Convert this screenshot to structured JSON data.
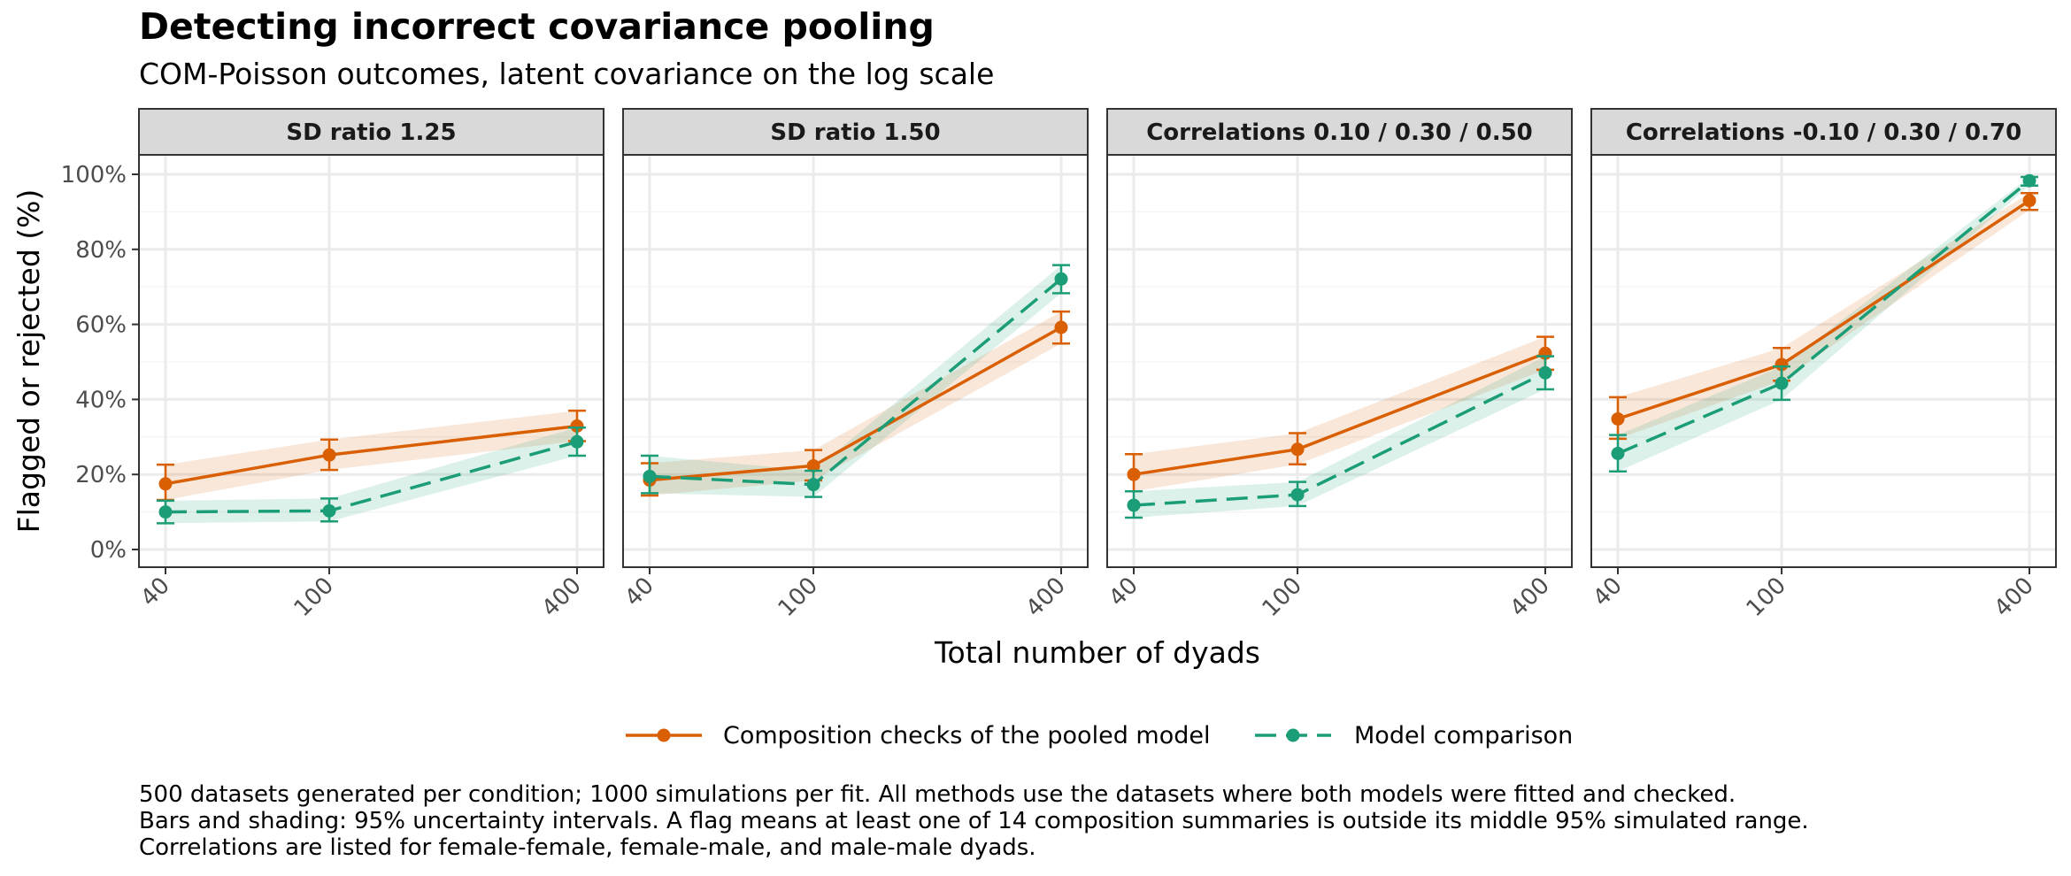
{
  "title": "Detecting incorrect covariance pooling",
  "subtitle": "COM-Poisson outcomes, latent covariance on the log scale",
  "caption": [
    "500 datasets generated per condition; 1000 simulations per fit. All methods use the datasets where both models were fitted and checked.",
    "Bars and shading: 95% uncertainty intervals. A flag means at least one of 14 composition summaries is outside its middle 95% simulated range.",
    "Correlations are listed for female-female, female-male, and male-male dyads."
  ],
  "colors": {
    "composition": "#d95f02",
    "comparison": "#1b9e77",
    "strip_bg": "#d9d9d9",
    "grid": "#ebebeb"
  },
  "chart_data": {
    "type": "line",
    "facet_type": "small-multiples",
    "xlabel": "Total number of dyads",
    "ylabel": "Flagged or rejected (%)",
    "x_scale": "log",
    "x_ticks": [
      40,
      100,
      400
    ],
    "y_ticks": [
      0,
      20,
      40,
      60,
      80,
      100
    ],
    "y_tick_labels": [
      "0%",
      "20%",
      "40%",
      "60%",
      "80%",
      "100%"
    ],
    "ylim": [
      -4,
      104
    ],
    "grid": true,
    "legend_position": "bottom",
    "series": [
      {
        "name": "Composition checks of the pooled model",
        "key": "composition",
        "line": "solid"
      },
      {
        "name": "Model comparison",
        "key": "comparison",
        "line": "dashed"
      }
    ],
    "panels": [
      {
        "label": "SD ratio 1.25",
        "composition": {
          "x": [
            40,
            100,
            400
          ],
          "y": [
            17.5,
            25.2,
            32.9
          ],
          "lo": [
            13.2,
            21.2,
            28.9
          ],
          "hi": [
            22.6,
            29.3,
            37.0
          ]
        },
        "comparison": {
          "x": [
            40,
            100,
            400
          ],
          "y": [
            10.0,
            10.3,
            28.7
          ],
          "lo": [
            7.0,
            7.5,
            25.0
          ],
          "hi": [
            13.0,
            13.6,
            32.5
          ]
        }
      },
      {
        "label": "SD ratio 1.50",
        "composition": {
          "x": [
            40,
            100,
            400
          ],
          "y": [
            18.5,
            22.3,
            59.2
          ],
          "lo": [
            14.4,
            18.4,
            54.9
          ],
          "hi": [
            23.0,
            26.5,
            63.4
          ]
        },
        "comparison": {
          "x": [
            40,
            100,
            400
          ],
          "y": [
            19.5,
            17.3,
            72.1
          ],
          "lo": [
            15.0,
            14.0,
            68.3
          ],
          "hi": [
            25.0,
            21.0,
            75.8
          ]
        }
      },
      {
        "label": "Correlations 0.10 / 0.30 / 0.50",
        "composition": {
          "x": [
            40,
            100,
            400
          ],
          "y": [
            20.0,
            26.7,
            52.3
          ],
          "lo": [
            15.5,
            22.7,
            47.9
          ],
          "hi": [
            25.4,
            31.0,
            56.7
          ]
        },
        "comparison": {
          "x": [
            40,
            100,
            400
          ],
          "y": [
            11.8,
            14.6,
            47.1
          ],
          "lo": [
            8.5,
            11.6,
            42.7
          ],
          "hi": [
            15.5,
            18.0,
            51.5
          ]
        }
      },
      {
        "label": "Correlations -0.10 / 0.30 / 0.70",
        "composition": {
          "x": [
            40,
            100,
            400
          ],
          "y": [
            34.8,
            49.3,
            93.0
          ],
          "lo": [
            29.5,
            45.0,
            90.5
          ],
          "hi": [
            40.6,
            53.7,
            95.0
          ]
        },
        "comparison": {
          "x": [
            40,
            100,
            400
          ],
          "y": [
            25.6,
            44.3,
            98.3
          ],
          "lo": [
            20.8,
            39.9,
            97.0
          ],
          "hi": [
            30.5,
            48.8,
            99.3
          ]
        }
      }
    ]
  }
}
